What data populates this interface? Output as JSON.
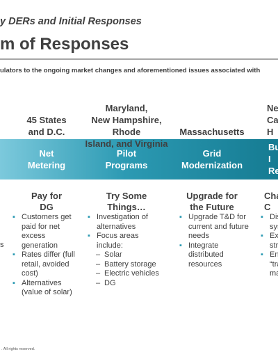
{
  "header": {
    "subtitle": "y DERs and Initial Responses",
    "title": "m of Responses",
    "intro": "ulators to the ongoing market changes and aforementioned issues associated with"
  },
  "columns": [
    {
      "states": "45 States\nand D.C.",
      "response": "Net\nMetering",
      "heading": "Pay for\nDG",
      "bullets": [
        {
          "text": "Customers get paid for net excess generation"
        },
        {
          "text": "Rates differ (full retail, avoided cost)"
        },
        {
          "text": "Alternatives (value of solar)"
        }
      ]
    },
    {
      "states": "Maryland,\nNew Hampshire, Rhode\nIsland, and Virginia",
      "response": "Pilot\nPrograms",
      "heading": "Try Some\nThings…",
      "bullets": [
        {
          "text": "Investigation of alternatives"
        },
        {
          "text": "Focus areas include:",
          "sub": [
            "Solar",
            "Battery storage",
            "Electric vehicles",
            "DG"
          ]
        }
      ]
    },
    {
      "states": "Massachusetts",
      "response": "Grid\nModernization",
      "heading": "Upgrade for\nthe Future",
      "bullets": [
        {
          "text": "Upgrade T&D for current and future needs"
        },
        {
          "text": "Integrate distributed resources"
        }
      ]
    },
    {
      "states": "Ne\nCalifo\nH",
      "response": "Bu\nI\nRe",
      "heading": "Cha\nC",
      "bullets": [
        {
          "text": "Distr\nsyste"
        },
        {
          "text": "Expa\nstrea"
        },
        {
          "text": "Enab\n“tran\nmark"
        }
      ]
    }
  ],
  "left_fragment": "s",
  "footer": ". All rights reserved."
}
